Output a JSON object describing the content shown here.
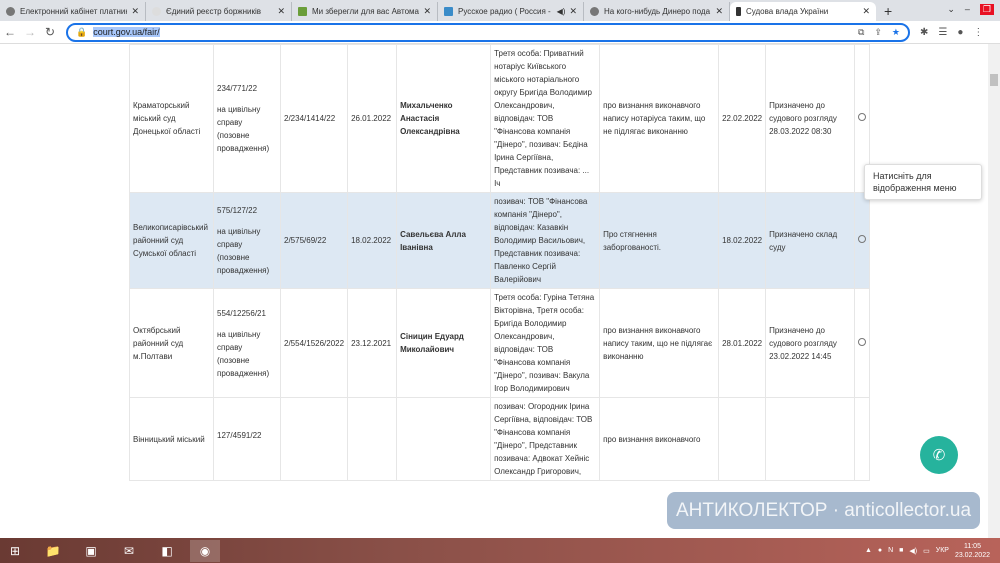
{
  "browser": {
    "tabs": [
      {
        "title": "Електронний кабінет платник",
        "icon": "globe-icon"
      },
      {
        "title": "Єдиний реєстр боржників",
        "icon": "registry-icon"
      },
      {
        "title": "Ми зберегли для вас Автомат",
        "icon": "document-icon"
      },
      {
        "title": "Русское радио ( Россия -",
        "icon": "radio-icon",
        "audio": true
      },
      {
        "title": "На кого-нибудь Динеро пода",
        "icon": "globe-icon"
      },
      {
        "title": "Судова влада України",
        "icon": "court-icon",
        "active": true
      }
    ],
    "url": "court.gov.ua/fair/"
  },
  "table": {
    "rows": [
      {
        "court": "Краматорський міський суд Донецької області",
        "case_no": "234/771/22",
        "case_type": "на цивільну справу (позовне провадження)",
        "proc_no": "2/234/1414/22",
        "date": "26.01.2022",
        "judge": "Михальченко Анастасія Олександрівна",
        "parties": "Третя особа: Приватний нотаріус Київського міського нотаріального округу Бригіда Володимир Олександрович, відповідач: ТОВ \"Фінансова компанія \"Дінеро\", позивач: Бєдіна Ірина Сергіївна, Представник позивача: ... Іч",
        "subject": "про визнання виконавчого напису нотаріуса таким, що не підлягає виконанню",
        "reg_date": "22.02.2022",
        "status": "Призначено до судового розгляду 28.03.2022 08:30",
        "highlight": false
      },
      {
        "court": "Великописарівський районний суд Сумської області",
        "case_no": "575/127/22",
        "case_type": "на цивільну справу (позовне провадження)",
        "proc_no": "2/575/69/22",
        "date": "18.02.2022",
        "judge": "Савельєва Алла Іванівна",
        "parties": "позивач: ТОВ \"Фінансова компанія \"Дінеро\", відповідач: Казавкін Володимир Васильович, Представник позивача: Павленко Сергій Валерійович",
        "subject": "Про стягнення заборгованості.",
        "reg_date": "18.02.2022",
        "status": "Призначено склад суду",
        "highlight": true
      },
      {
        "court": "Октябрський районний суд м.Полтави",
        "case_no": "554/12256/21",
        "case_type": "на цивільну справу (позовне провадження)",
        "proc_no": "2/554/1526/2022",
        "date": "23.12.2021",
        "judge": "Сіницин Едуард Миколайович",
        "parties": "Третя особа: Гуріна Тетяна Вікторівна, Третя особа: Бригіда Володимир Олександрович, відповідач: ТОВ \"Фінансова компанія \"Дінеро\", позивач: Вакула Ігор Володимирович",
        "subject": "про визнання виконавчого напису таким, що не підлягає виконанню",
        "reg_date": "28.01.2022",
        "status": "Призначено до судового розгляду 23.02.2022 14:45",
        "highlight": false
      },
      {
        "court": "Вінницький міський",
        "case_no": "127/4591/22",
        "case_type": "",
        "proc_no": "",
        "date": "",
        "judge": "",
        "parties": "позивач: Огородник Ірина Сергіївна, відповідач: ТОВ \"Фінансова компанія \"Дінеро\", Представник позивача: Адвокат Хейніс Олександр Григорович,",
        "subject": "про визнання виконавчого",
        "reg_date": "",
        "status": "",
        "highlight": false
      }
    ]
  },
  "tooltip": "Натисніть для відображення меню",
  "watermark": "АНТИКОЛЕКТОР · anticollector.ua",
  "taskbar": {
    "lang": "УКР",
    "time": "11:05",
    "date": "23.02.2022"
  }
}
